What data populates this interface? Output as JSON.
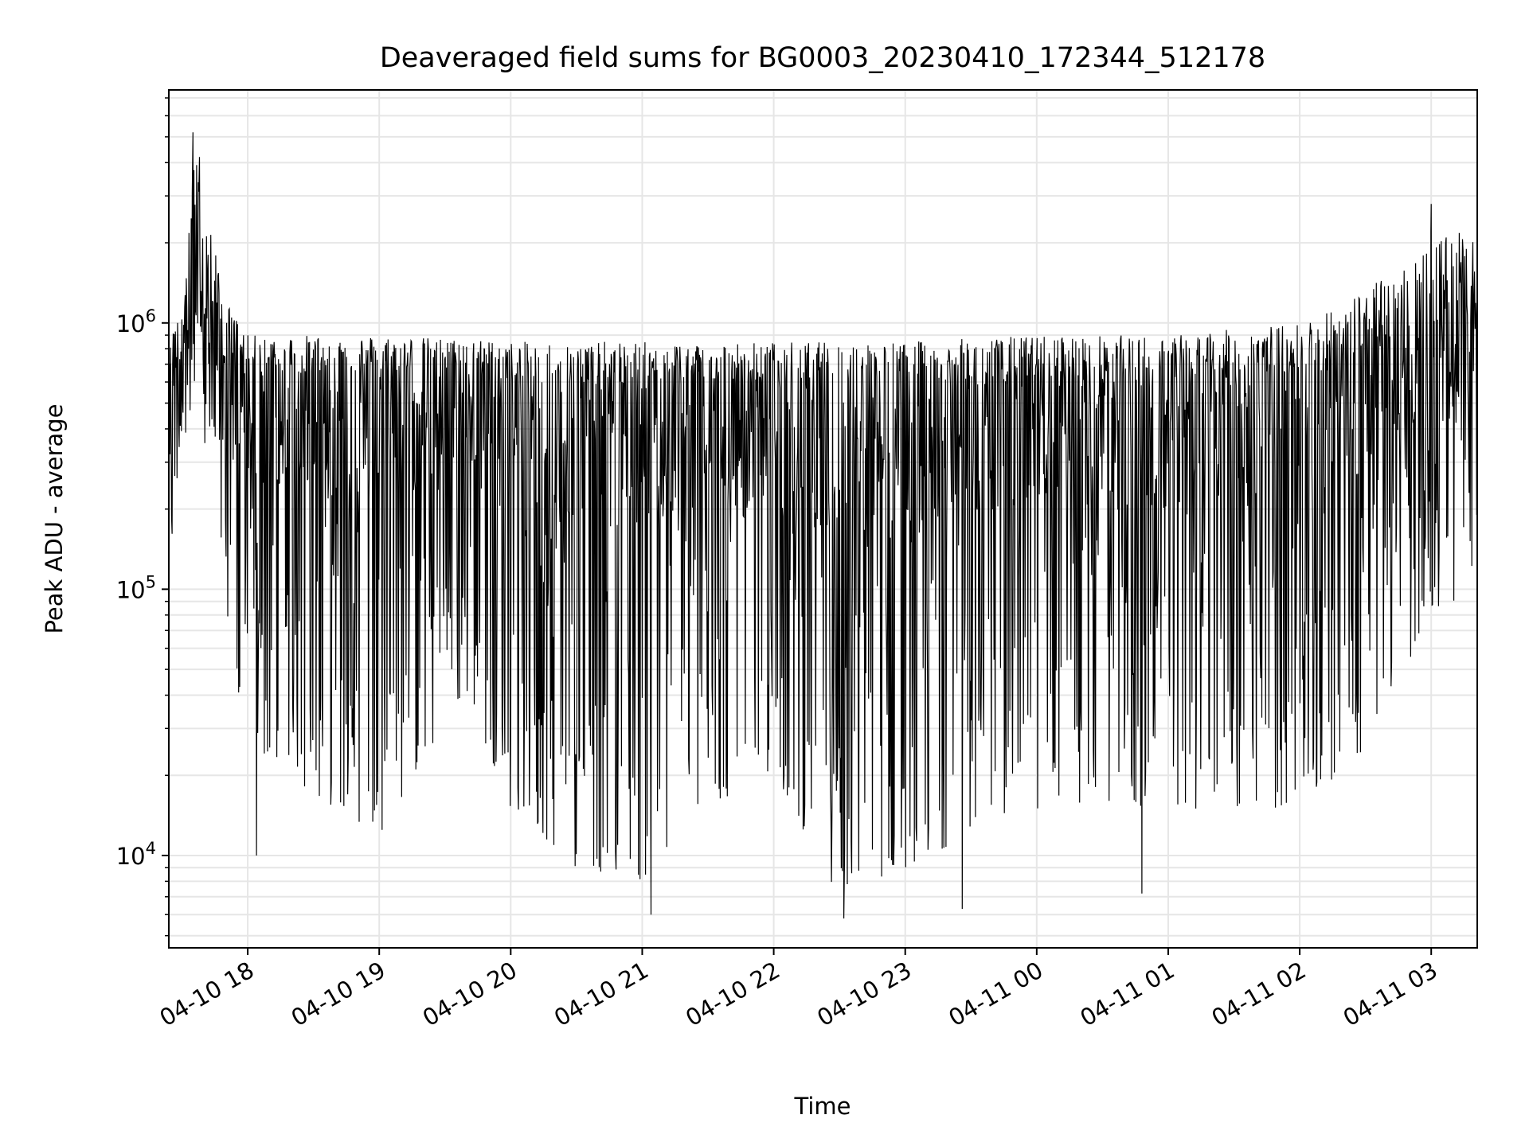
{
  "chart_data": {
    "type": "line",
    "title": "Deaveraged field sums for BG0003_20230410_172344_512178",
    "xlabel": "Time",
    "ylabel": "Peak ADU - average",
    "y_scale": "log",
    "ylim": [
      4500,
      7500000
    ],
    "xlim": [
      "2023-04-10 17:24",
      "2023-04-11 03:21"
    ],
    "grid": true,
    "line_color": "#000000",
    "grid_color": "#e6e6e6",
    "x_ticks": [
      {
        "time": "2023-04-10 18:00",
        "label": "04-10 18"
      },
      {
        "time": "2023-04-10 19:00",
        "label": "04-10 19"
      },
      {
        "time": "2023-04-10 20:00",
        "label": "04-10 20"
      },
      {
        "time": "2023-04-10 21:00",
        "label": "04-10 21"
      },
      {
        "time": "2023-04-10 22:00",
        "label": "04-10 22"
      },
      {
        "time": "2023-04-10 23:00",
        "label": "04-10 23"
      },
      {
        "time": "2023-04-11 00:00",
        "label": "04-11 00"
      },
      {
        "time": "2023-04-11 01:00",
        "label": "04-11 01"
      },
      {
        "time": "2023-04-11 02:00",
        "label": "04-11 02"
      },
      {
        "time": "2023-04-11 03:00",
        "label": "04-11 03"
      }
    ],
    "y_ticks": [
      {
        "value": 10000,
        "base": "10",
        "exp": "4"
      },
      {
        "value": 100000,
        "base": "10",
        "exp": "5"
      },
      {
        "value": 1000000,
        "base": "10",
        "exp": "6"
      }
    ],
    "series": [
      {
        "envelope": {
          "upper_peaks": [
            {
              "x": "2023-04-10 17:24",
              "y": 750000
            },
            {
              "x": "2023-04-10 17:30",
              "y": 1500000
            },
            {
              "x": "2023-04-10 17:35",
              "y": 5000000
            },
            {
              "x": "2023-04-10 17:40",
              "y": 3000000
            },
            {
              "x": "2023-04-10 17:45",
              "y": 2000000
            },
            {
              "x": "2023-04-10 17:50",
              "y": 1200000
            },
            {
              "x": "2023-04-10 18:00",
              "y": 900000
            },
            {
              "x": "2023-04-10 19:00",
              "y": 900000
            },
            {
              "x": "2023-04-10 20:00",
              "y": 850000
            },
            {
              "x": "2023-04-10 21:00",
              "y": 850000
            },
            {
              "x": "2023-04-10 22:00",
              "y": 850000
            },
            {
              "x": "2023-04-10 23:00",
              "y": 850000
            },
            {
              "x": "2023-04-11 00:00",
              "y": 900000
            },
            {
              "x": "2023-04-11 01:00",
              "y": 900000
            },
            {
              "x": "2023-04-11 02:00",
              "y": 1000000
            },
            {
              "x": "2023-04-11 02:40",
              "y": 1500000
            },
            {
              "x": "2023-04-11 03:00",
              "y": 2500000
            },
            {
              "x": "2023-04-11 03:21",
              "y": 2000000
            }
          ],
          "band_top": [
            {
              "x": "2023-04-10 17:24",
              "y": 700000
            },
            {
              "x": "2023-04-10 17:35",
              "y": 1500000
            },
            {
              "x": "2023-04-10 17:50",
              "y": 900000
            },
            {
              "x": "2023-04-10 18:00",
              "y": 700000
            },
            {
              "x": "2023-04-10 19:00",
              "y": 650000
            },
            {
              "x": "2023-04-10 19:50",
              "y": 700000
            },
            {
              "x": "2023-04-10 20:00",
              "y": 600000
            },
            {
              "x": "2023-04-10 21:00",
              "y": 600000
            },
            {
              "x": "2023-04-10 22:00",
              "y": 600000
            },
            {
              "x": "2023-04-10 23:00",
              "y": 600000
            },
            {
              "x": "2023-04-11 00:00",
              "y": 600000
            },
            {
              "x": "2023-04-11 01:00",
              "y": 600000
            },
            {
              "x": "2023-04-11 02:00",
              "y": 650000
            },
            {
              "x": "2023-04-11 03:00",
              "y": 1000000
            },
            {
              "x": "2023-04-11 03:21",
              "y": 1200000
            }
          ],
          "lower_troughs": [
            {
              "x": "2023-04-10 17:24",
              "y": 95000
            },
            {
              "x": "2023-04-10 17:30",
              "y": 400000
            },
            {
              "x": "2023-04-10 17:45",
              "y": 300000
            },
            {
              "x": "2023-04-10 17:55",
              "y": 30000
            },
            {
              "x": "2023-04-10 18:00",
              "y": 25000
            },
            {
              "x": "2023-04-10 18:40",
              "y": 15000
            },
            {
              "x": "2023-04-10 19:00",
              "y": 12000
            },
            {
              "x": "2023-04-10 19:40",
              "y": 40000
            },
            {
              "x": "2023-04-10 20:00",
              "y": 15000
            },
            {
              "x": "2023-04-10 20:30",
              "y": 9000
            },
            {
              "x": "2023-04-10 21:00",
              "y": 8000
            },
            {
              "x": "2023-04-10 21:30",
              "y": 15000
            },
            {
              "x": "2023-04-10 22:00",
              "y": 20000
            },
            {
              "x": "2023-04-10 22:30",
              "y": 7000
            },
            {
              "x": "2023-04-10 23:00",
              "y": 9000
            },
            {
              "x": "2023-04-10 23:30",
              "y": 12000
            },
            {
              "x": "2023-04-11 00:00",
              "y": 15000
            },
            {
              "x": "2023-04-11 00:30",
              "y": 15000
            },
            {
              "x": "2023-04-11 01:00",
              "y": 15000
            },
            {
              "x": "2023-04-11 01:30",
              "y": 15000
            },
            {
              "x": "2023-04-11 02:00",
              "y": 15000
            },
            {
              "x": "2023-04-11 02:30",
              "y": 25000
            },
            {
              "x": "2023-04-11 03:00",
              "y": 80000
            },
            {
              "x": "2023-04-11 03:21",
              "y": 100000
            }
          ],
          "notable_minima": [
            {
              "x": "2023-04-10 18:04",
              "y": 10000
            },
            {
              "x": "2023-04-10 21:04",
              "y": 6000
            },
            {
              "x": "2023-04-10 22:32",
              "y": 5800
            },
            {
              "x": "2023-04-10 23:26",
              "y": 6300
            },
            {
              "x": "2023-04-11 00:48",
              "y": 7200
            }
          ],
          "notable_maxima": [
            {
              "x": "2023-04-10 17:35",
              "y": 5200000
            },
            {
              "x": "2023-04-10 17:38",
              "y": 4200000
            },
            {
              "x": "2023-04-11 03:00",
              "y": 2800000
            }
          ]
        }
      }
    ]
  }
}
